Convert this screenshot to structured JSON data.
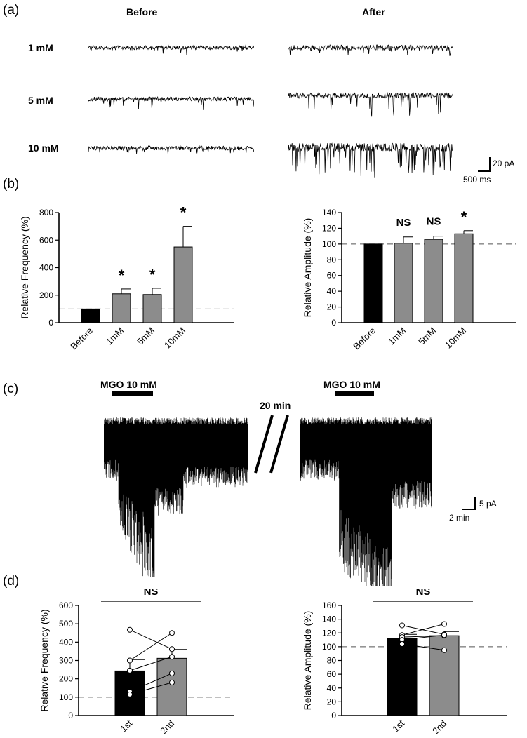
{
  "panel_a": {
    "letter": "(a)",
    "col_before": "Before",
    "col_after": "After",
    "rows": [
      "1 mM",
      "5 mM",
      "10 mM"
    ],
    "scale_y": "20 pA",
    "scale_x": "500 ms"
  },
  "panel_b": {
    "letter": "(b)"
  },
  "panel_c": {
    "letter": "(c)",
    "drug_label_1": "MGO 10 mM",
    "drug_label_2": "MGO 10 mM",
    "gap_label": "20 min",
    "scale_y": "5 pA",
    "scale_x": "2 min"
  },
  "panel_d": {
    "letter": "(d)"
  },
  "chart_data": [
    {
      "id": "b_frequency",
      "type": "bar",
      "ylabel": "Relative Frequency (%)",
      "ylim": [
        0,
        800
      ],
      "yticks": [
        0,
        200,
        400,
        600,
        800
      ],
      "categories": [
        "Before",
        "1mM",
        "5mM",
        "10mM"
      ],
      "values": [
        100,
        210,
        205,
        550
      ],
      "errors": [
        0,
        35,
        45,
        150
      ],
      "colors": [
        "#000000",
        "#8c8c8c",
        "#8c8c8c",
        "#8c8c8c"
      ],
      "sig": [
        "",
        "*",
        "*",
        "*"
      ],
      "baseline": 100
    },
    {
      "id": "b_amplitude",
      "type": "bar",
      "ylabel": "Relative Amplitude (%)",
      "ylim": [
        0,
        140
      ],
      "yticks": [
        0,
        20,
        40,
        60,
        80,
        100,
        120,
        140
      ],
      "categories": [
        "Before",
        "1mM",
        "5mM",
        "10mM"
      ],
      "values": [
        100,
        101,
        106,
        113
      ],
      "errors": [
        0,
        8,
        4,
        4
      ],
      "colors": [
        "#000000",
        "#8c8c8c",
        "#8c8c8c",
        "#8c8c8c"
      ],
      "sig": [
        "",
        "NS",
        "NS",
        "*"
      ],
      "baseline": 100
    },
    {
      "id": "d_frequency",
      "type": "bar",
      "ylabel": "Relative Frequency (%)",
      "ylim": [
        0,
        600
      ],
      "yticks": [
        0,
        100,
        200,
        300,
        400,
        500,
        600
      ],
      "categories": [
        "1st",
        "2nd"
      ],
      "values": [
        243,
        312
      ],
      "errors": [
        62,
        48
      ],
      "colors": [
        "#000000",
        "#8c8c8c"
      ],
      "baseline": 100,
      "bracket": "NS",
      "paired": [
        [
          467,
          362
        ],
        [
          300,
          450
        ],
        [
          245,
          320
        ],
        [
          130,
          230
        ],
        [
          115,
          180
        ]
      ]
    },
    {
      "id": "d_amplitude",
      "type": "bar",
      "ylabel": "Relative Amplitude (%)",
      "ylim": [
        0,
        160
      ],
      "yticks": [
        0,
        20,
        40,
        60,
        80,
        100,
        120,
        140,
        160
      ],
      "categories": [
        "1st",
        "2nd"
      ],
      "values": [
        112,
        116
      ],
      "errors": [
        6,
        6
      ],
      "colors": [
        "#000000",
        "#8c8c8c"
      ],
      "baseline": 100,
      "bracket": "NS",
      "paired": [
        [
          131,
          118
        ],
        [
          117,
          133
        ],
        [
          114,
          116
        ],
        [
          110,
          117
        ],
        [
          104,
          95
        ]
      ]
    }
  ]
}
